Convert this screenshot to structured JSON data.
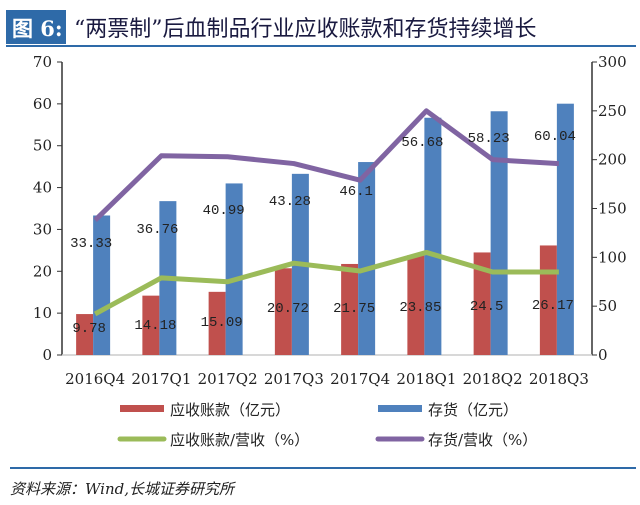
{
  "header": {
    "figure_label": "图 6:",
    "title": "“两票制”后血制品行业应收账款和存货持续增长"
  },
  "source": "资料来源：Wind,长城证券研究所",
  "colors": {
    "header_box": "#2e6aa8",
    "rule": "#2e6aa8",
    "receivables": "#c0504d",
    "inventory": "#4f81bd",
    "receivables_ratio": "#9bbb59",
    "inventory_ratio": "#8064a2"
  },
  "chart_data": {
    "type": "bar",
    "categories": [
      "2016Q4",
      "2017Q1",
      "2017Q2",
      "2017Q3",
      "2017Q4",
      "2018Q1",
      "2018Q2",
      "2018Q3"
    ],
    "y_left": {
      "range": [
        0,
        70
      ],
      "ticks": [
        "0",
        "10",
        "20",
        "30",
        "40",
        "50",
        "60",
        "70"
      ]
    },
    "y_right": {
      "range": [
        0,
        300
      ],
      "ticks": [
        "0",
        "50",
        "100",
        "150",
        "200",
        "250",
        "300"
      ]
    },
    "series": [
      {
        "name": "应收账款（亿元）",
        "kind": "bar",
        "axis": "left",
        "values": [
          9.78,
          14.18,
          15.09,
          20.72,
          21.75,
          23.85,
          24.5,
          26.17
        ],
        "labels": [
          "9.78",
          "14.18",
          "15.09",
          "20.72",
          "21.75",
          "23.85",
          "24.5",
          "26.17"
        ]
      },
      {
        "name": "存货（亿元）",
        "kind": "bar",
        "axis": "left",
        "values": [
          33.33,
          36.76,
          40.99,
          43.28,
          46.1,
          56.68,
          58.23,
          60.04
        ],
        "labels": [
          "33.33",
          "36.76",
          "40.99",
          "43.28",
          "46.1",
          "56.68",
          "58.23",
          "60.04"
        ]
      },
      {
        "name": "应收账款/营收（%）",
        "kind": "line",
        "axis": "right",
        "values": [
          42,
          79,
          75,
          94,
          86,
          105,
          85,
          85
        ]
      },
      {
        "name": "存货/营收（%）",
        "kind": "line",
        "axis": "right",
        "values": [
          138,
          204,
          203,
          196,
          179,
          250,
          200,
          196
        ]
      }
    ],
    "grid": false,
    "legend": "bottom"
  }
}
